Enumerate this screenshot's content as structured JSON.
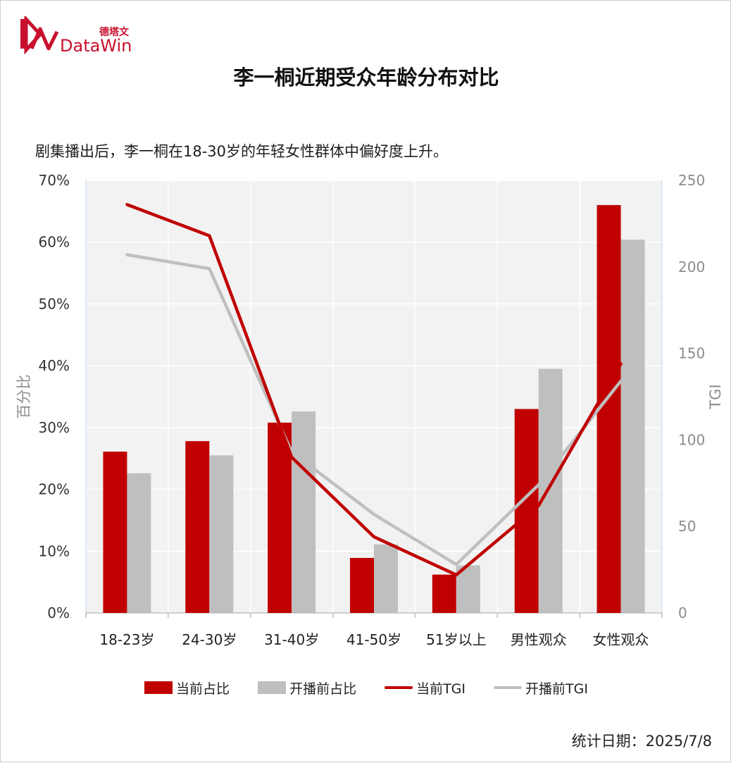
{
  "brand": {
    "name_cn": "德塔文",
    "name_en": "DataWin"
  },
  "title": "李一桐近期受众年龄分布对比",
  "subtitle": "剧集播出后，李一桐在18-30岁的年轻女性群体中偏好度上升。",
  "footer": "统计日期：2025/7/8",
  "colors": {
    "current": "#c00000",
    "before": "#bfbfbf",
    "grid": "#ffffff",
    "plot_bg": "#f2f2f2"
  },
  "chart_data": {
    "type": "bar",
    "categories": [
      "18-23岁",
      "24-30岁",
      "31-40岁",
      "41-50岁",
      "51岁以上",
      "男性观众",
      "女性观众"
    ],
    "ylabel": "百分比",
    "y2label": "TGI",
    "ylim": [
      0,
      70
    ],
    "y2lim": [
      0,
      250
    ],
    "y_ticks": [
      "0%",
      "10%",
      "20%",
      "30%",
      "40%",
      "50%",
      "60%",
      "70%"
    ],
    "y2_ticks": [
      "0",
      "50",
      "100",
      "150",
      "200",
      "250"
    ],
    "grid": true,
    "legend_position": "bottom",
    "series": [
      {
        "name": "当前占比",
        "kind": "bar",
        "axis": "left",
        "values": [
          26.1,
          27.8,
          30.8,
          8.9,
          6.2,
          33.0,
          66.0
        ]
      },
      {
        "name": "开播前占比",
        "kind": "bar",
        "axis": "left",
        "values": [
          22.6,
          25.5,
          32.6,
          11.1,
          7.7,
          39.5,
          60.4
        ]
      },
      {
        "name": "当前TGI",
        "kind": "line",
        "axis": "right",
        "values": [
          236,
          218,
          90,
          44,
          22,
          62,
          144
        ]
      },
      {
        "name": "开播前TGI",
        "kind": "line",
        "axis": "right",
        "values": [
          207,
          199,
          93,
          57,
          28,
          74,
          134
        ]
      }
    ]
  }
}
